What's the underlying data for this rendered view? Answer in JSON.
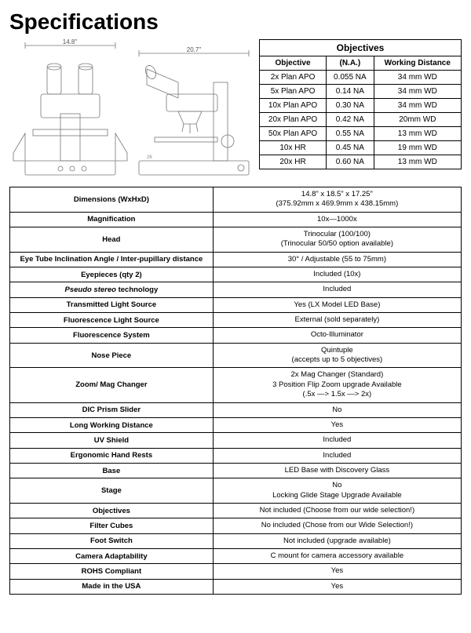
{
  "title": "Specifications",
  "diagram": {
    "front_width_label": "14.8\"",
    "side_width_label": "20.7\""
  },
  "objectives": {
    "header": "Objectives",
    "columns": [
      "Objective",
      "(N.A.)",
      "Working Distance"
    ],
    "rows": [
      [
        "2x Plan APO",
        "0.055 NA",
        "34 mm WD"
      ],
      [
        "5x Plan APO",
        "0.14 NA",
        "34 mm WD"
      ],
      [
        "10x Plan APO",
        "0.30 NA",
        "34 mm WD"
      ],
      [
        "20x Plan APO",
        "0.42 NA",
        "20mm WD"
      ],
      [
        "50x Plan APO",
        "0.55 NA",
        "13 mm WD"
      ],
      [
        "10x HR",
        "0.45 NA",
        "19 mm WD"
      ],
      [
        "20x HR",
        "0.60 NA",
        "13 mm WD"
      ]
    ]
  },
  "specs": [
    {
      "label": "Dimensions (WxHxD)",
      "value": "14.8\" x 18.5\" x 17.25\"\n(375.92mm x 469.9mm x 438.15mm)"
    },
    {
      "label": "Magnification",
      "value": "10x—1000x"
    },
    {
      "label": "Head",
      "value": "Trinocular (100/100)\n(Trinocular 50/50 option available)"
    },
    {
      "label": "Eye Tube Inclination Angle / Inter-pupillary distance",
      "value": "30° / Adjustable (55 to 75mm)"
    },
    {
      "label": "Eyepieces (qty 2)",
      "value": "Included (10x)"
    },
    {
      "label": "Pseudo stereo technology",
      "value": "Included",
      "italic_prefix": "Pseudo stereo"
    },
    {
      "label": "Transmitted Light Source",
      "value": "Yes (LX Model LED Base)"
    },
    {
      "label": "Fluorescence Light Source",
      "value": "External (sold separately)"
    },
    {
      "label": "Fluorescence System",
      "value": "Octo-Illuminator"
    },
    {
      "label": "Nose Piece",
      "value": "Quintuple\n(accepts up to 5 objectives)"
    },
    {
      "label": "Zoom/ Mag Changer",
      "value": "2x Mag Changer (Standard)\n3 Position Flip Zoom upgrade Available\n(.5x —> 1.5x —> 2x)"
    },
    {
      "label": "DIC Prism Slider",
      "value": "No"
    },
    {
      "label": "Long Working Distance",
      "value": "Yes"
    },
    {
      "label": "UV Shield",
      "value": "Included"
    },
    {
      "label": "Ergonomic Hand Rests",
      "value": "Included"
    },
    {
      "label": "Base",
      "value": "LED Base with Discovery Glass"
    },
    {
      "label": "Stage",
      "value": "No\nLocking Glide Stage Upgrade Available"
    },
    {
      "label": "Objectives",
      "value": "Not included  (Choose from our wide selection!)"
    },
    {
      "label": "Filter Cubes",
      "value": "No included (Chose from our Wide Selection!)"
    },
    {
      "label": "Foot Switch",
      "value": "Not included (upgrade available)"
    },
    {
      "label": "Camera Adaptability",
      "value": "C mount for camera accessory available"
    },
    {
      "label": "ROHS Compliant",
      "value": "Yes"
    },
    {
      "label": "Made in the USA",
      "value": "Yes"
    }
  ],
  "colors": {
    "border": "#000000",
    "text": "#000000",
    "bg": "#ffffff",
    "diagram_line": "#888888"
  }
}
